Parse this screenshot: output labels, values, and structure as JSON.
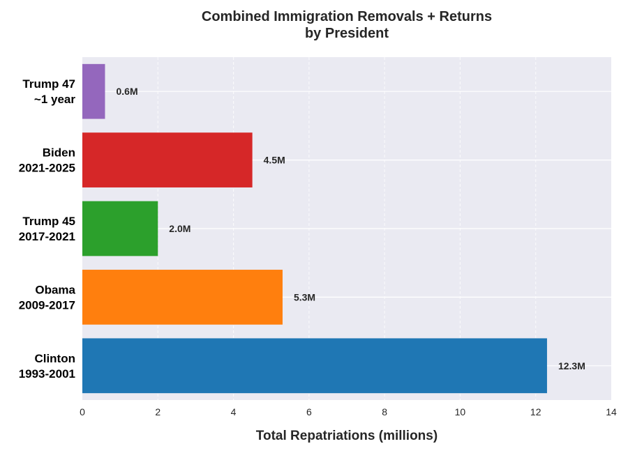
{
  "chart_data": {
    "type": "bar",
    "orientation": "horizontal",
    "title_lines": [
      "Combined Immigration Removals + Returns",
      "by President"
    ],
    "xlabel": "Total Repatriations (millions)",
    "ylabel": "",
    "xlim": [
      0,
      14
    ],
    "xticks": [
      0,
      2,
      4,
      6,
      8,
      10,
      12,
      14
    ],
    "grid": true,
    "categories": [
      {
        "lines": [
          "Clinton",
          "1993-2001"
        ],
        "value": 12.3,
        "label": "12.3M",
        "color": "#1f77b4"
      },
      {
        "lines": [
          "Obama",
          "2009-2017"
        ],
        "value": 5.3,
        "label": "5.3M",
        "color": "#ff7f0e"
      },
      {
        "lines": [
          "Trump 45",
          "2017-2021"
        ],
        "value": 2.0,
        "label": "2.0M",
        "color": "#2ca02c"
      },
      {
        "lines": [
          "Biden",
          "2021-2025"
        ],
        "value": 4.5,
        "label": "4.5M",
        "color": "#d62728"
      },
      {
        "lines": [
          "Trump 47",
          "~1 year"
        ],
        "value": 0.6,
        "label": "0.6M",
        "color": "#9467bd"
      }
    ],
    "colors": {
      "plot_background": "#eaeaf2",
      "grid": "#ffffff"
    }
  }
}
